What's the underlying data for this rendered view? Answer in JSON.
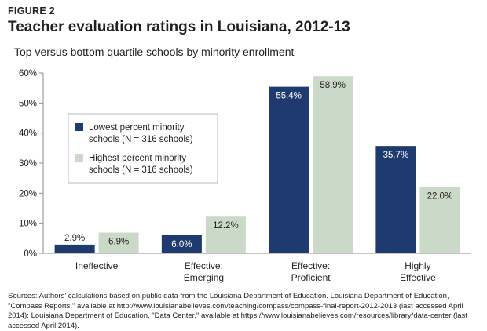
{
  "figure_label": "FIGURE 2",
  "title": "Teacher evaluation ratings in Louisiana, 2012-13",
  "subtitle": "Top versus bottom quartile schools by minority enrollment",
  "sources": "Sources: Authors' calculations based on public data from the Louisiana Department of Education. Louisiana Department of Education, \"Compass Reports,\" available at http://www.louisianabelieves.com/teaching/compass/compass-final-report-2012-2013 (last accessed April 2014); Louisiana Department of Education, \"Data Center,\" available at https://www.louisianabelieves.com/resources/library/data-center (last accessed April 2014).",
  "colors": {
    "lowest": "#1f3a6e",
    "highest": "#cbd9c9",
    "axis": "#8a8a8a"
  },
  "chart_data": {
    "type": "bar",
    "categories": [
      [
        "Ineffective"
      ],
      [
        "Effective:",
        "Emerging"
      ],
      [
        "Effective:",
        "Proficient"
      ],
      [
        "Highly",
        "Effective"
      ]
    ],
    "series": [
      {
        "name": [
          "Lowest percent minority",
          "schools (N = 316 schools)"
        ],
        "values": [
          2.9,
          6.0,
          55.4,
          35.7
        ],
        "labels": [
          "2.9%",
          "6.0%",
          "55.4%",
          "35.7%"
        ]
      },
      {
        "name": [
          "Highest percent minority",
          "schools (N = 316 schools)"
        ],
        "values": [
          6.9,
          12.2,
          58.9,
          22.0
        ],
        "labels": [
          "6.9%",
          "12.2%",
          "58.9%",
          "22.0%"
        ]
      }
    ],
    "yticks": [
      "0%",
      "10%",
      "20%",
      "30%",
      "40%",
      "50%",
      "60%"
    ],
    "ylim": [
      0,
      60
    ],
    "legend_position": "top-left",
    "grid": false
  }
}
